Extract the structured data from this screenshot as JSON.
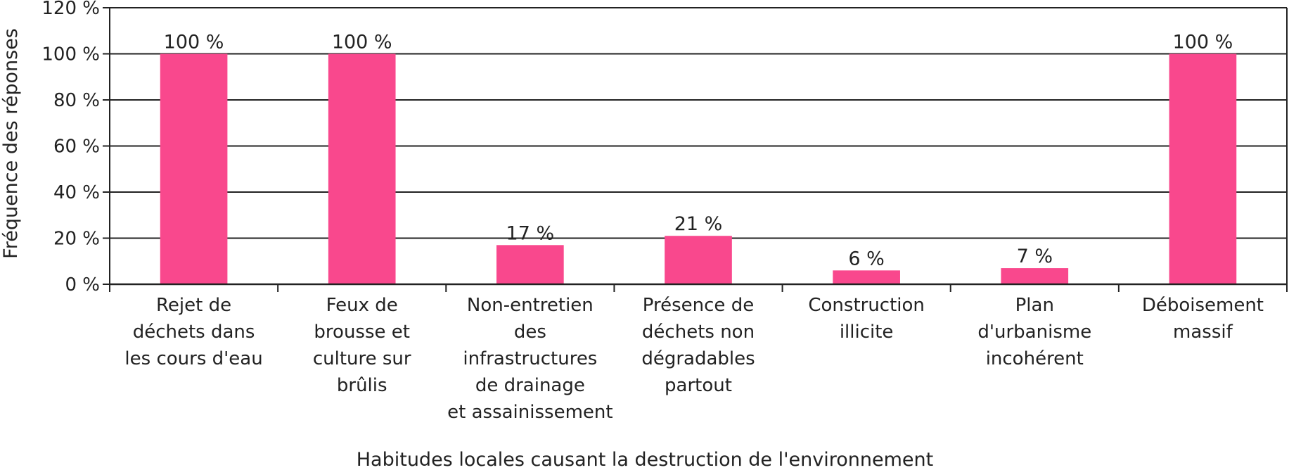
{
  "chart_data": {
    "type": "bar",
    "categories": [
      [
        "Rejet de",
        "déchets dans",
        "les cours d'eau"
      ],
      [
        "Feux de",
        "brousse et",
        "culture sur",
        "brûlis"
      ],
      [
        "Non-entretien",
        "des",
        "infrastructures",
        "de drainage",
        "et assainissement"
      ],
      [
        "Présence de",
        "déchets non",
        "dégradables",
        "partout"
      ],
      [
        "Construction",
        "illicite"
      ],
      [
        "Plan",
        "d'urbanisme",
        "incohérent"
      ],
      [
        "Déboisement",
        "massif"
      ]
    ],
    "values": [
      100,
      100,
      17,
      21,
      6,
      7,
      100
    ],
    "value_labels": [
      "100 %",
      "100 %",
      "17 %",
      "21 %",
      "6 %",
      "7 %",
      "100 %"
    ],
    "xlabel": "Habitudes locales causant la destruction de l'environnement",
    "ylabel": "Fréquence des réponses",
    "ylim": [
      0,
      120
    ],
    "yticks": [
      0,
      20,
      40,
      60,
      80,
      100,
      120
    ],
    "ytick_labels": [
      "0 %",
      "20 %",
      "40 %",
      "60 %",
      "80 %",
      "100 %",
      "120 %"
    ],
    "grid": true,
    "bar_color": "#f9488d"
  }
}
